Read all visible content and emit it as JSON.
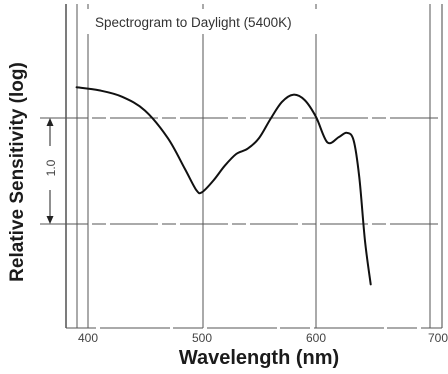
{
  "chart_data": {
    "type": "line",
    "title": "Spectrogram to Daylight (5400K)",
    "xlabel": "Wavelength (nm)",
    "ylabel": "Relative Sensitivity (log)",
    "scale_bar_label": "1.0",
    "x_ticks": [
      {
        "value": 400,
        "label": "400"
      },
      {
        "value": 500,
        "label": "500"
      },
      {
        "value": 600,
        "label": "600"
      },
      {
        "value": 700,
        "label": "700"
      }
    ],
    "xlim": [
      380,
      710
    ],
    "ylim": [
      -1.2,
      1.2
    ],
    "grid": true,
    "series": [
      {
        "x": [
          390,
          410,
          430,
          450,
          470,
          485,
          495,
          500,
          510,
          520,
          530,
          540,
          550,
          560,
          570,
          580,
          590,
          600,
          610,
          620,
          627,
          633,
          638,
          643,
          648
        ],
        "y": [
          0.79,
          0.76,
          0.7,
          0.57,
          0.31,
          0.02,
          -0.18,
          -0.2,
          -0.09,
          0.05,
          0.16,
          0.21,
          0.31,
          0.49,
          0.65,
          0.72,
          0.67,
          0.51,
          0.27,
          0.32,
          0.36,
          0.29,
          -0.06,
          -0.66,
          -1.07
        ]
      }
    ]
  },
  "colors": {
    "curve": "#111111",
    "grid": "#555555",
    "text": "#1b1b1b"
  }
}
